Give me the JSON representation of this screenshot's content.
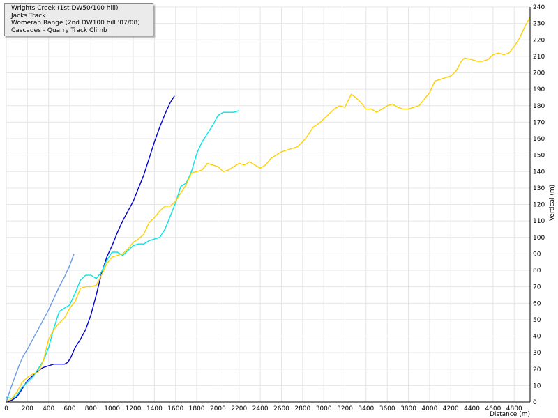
{
  "chart_data": {
    "type": "line",
    "title": "",
    "xlabel": "Distance (m)",
    "ylabel": "Vertical (m)",
    "xlim": [
      0,
      4950
    ],
    "ylim": [
      0,
      240
    ],
    "x_ticks": [
      0,
      200,
      400,
      600,
      800,
      1000,
      1200,
      1400,
      1600,
      1800,
      2000,
      2200,
      2400,
      2600,
      2800,
      3000,
      3200,
      3400,
      3600,
      3800,
      4000,
      4200,
      4400,
      4600,
      4800
    ],
    "y_ticks": [
      0,
      10,
      20,
      30,
      40,
      50,
      60,
      70,
      80,
      90,
      100,
      110,
      120,
      130,
      140,
      150,
      160,
      170,
      180,
      190,
      200,
      210,
      220,
      230,
      240
    ],
    "grid": true,
    "legend_position": "top-left",
    "series": [
      {
        "name": "Wrights Creek (1st DW50/100 hill)",
        "color": "#0000cc",
        "points": [
          [
            0,
            0
          ],
          [
            50,
            1
          ],
          [
            100,
            3
          ],
          [
            150,
            8
          ],
          [
            200,
            13
          ],
          [
            250,
            16
          ],
          [
            300,
            19
          ],
          [
            350,
            21
          ],
          [
            400,
            22
          ],
          [
            450,
            23
          ],
          [
            500,
            23
          ],
          [
            550,
            23
          ],
          [
            580,
            24
          ],
          [
            610,
            27
          ],
          [
            650,
            33
          ],
          [
            700,
            38
          ],
          [
            750,
            44
          ],
          [
            800,
            53
          ],
          [
            850,
            65
          ],
          [
            900,
            78
          ],
          [
            950,
            88
          ],
          [
            1000,
            95
          ],
          [
            1050,
            103
          ],
          [
            1100,
            110
          ],
          [
            1150,
            116
          ],
          [
            1200,
            122
          ],
          [
            1250,
            130
          ],
          [
            1300,
            138
          ],
          [
            1350,
            148
          ],
          [
            1400,
            158
          ],
          [
            1450,
            167
          ],
          [
            1500,
            175
          ],
          [
            1550,
            182
          ],
          [
            1590,
            186
          ]
        ]
      },
      {
        "name": "Jacks Track",
        "color": "#00e5e5",
        "points": [
          [
            0,
            3
          ],
          [
            50,
            2
          ],
          [
            100,
            4
          ],
          [
            150,
            9
          ],
          [
            200,
            12
          ],
          [
            250,
            15
          ],
          [
            300,
            20
          ],
          [
            350,
            25
          ],
          [
            400,
            33
          ],
          [
            450,
            45
          ],
          [
            500,
            55
          ],
          [
            550,
            57
          ],
          [
            600,
            59
          ],
          [
            650,
            66
          ],
          [
            700,
            74
          ],
          [
            750,
            77
          ],
          [
            800,
            77
          ],
          [
            850,
            75
          ],
          [
            900,
            79
          ],
          [
            950,
            86
          ],
          [
            1000,
            91
          ],
          [
            1050,
            91
          ],
          [
            1100,
            89
          ],
          [
            1150,
            92
          ],
          [
            1200,
            95
          ],
          [
            1250,
            96
          ],
          [
            1300,
            96
          ],
          [
            1350,
            98
          ],
          [
            1400,
            99
          ],
          [
            1450,
            100
          ],
          [
            1500,
            105
          ],
          [
            1550,
            113
          ],
          [
            1600,
            121
          ],
          [
            1650,
            131
          ],
          [
            1700,
            133
          ],
          [
            1750,
            140
          ],
          [
            1800,
            151
          ],
          [
            1850,
            158
          ],
          [
            1900,
            163
          ],
          [
            1950,
            168
          ],
          [
            2000,
            174
          ],
          [
            2050,
            176
          ],
          [
            2100,
            176
          ],
          [
            2150,
            176
          ],
          [
            2200,
            177
          ]
        ]
      },
      {
        "name": "Womerah Range (2nd DW100 hill '07/08)",
        "color": "#ffd000",
        "points": [
          [
            0,
            0
          ],
          [
            50,
            2
          ],
          [
            100,
            6
          ],
          [
            150,
            12
          ],
          [
            200,
            15
          ],
          [
            250,
            17
          ],
          [
            300,
            18
          ],
          [
            350,
            25
          ],
          [
            400,
            38
          ],
          [
            450,
            44
          ],
          [
            500,
            48
          ],
          [
            550,
            51
          ],
          [
            600,
            57
          ],
          [
            650,
            61
          ],
          [
            700,
            69
          ],
          [
            750,
            70
          ],
          [
            800,
            70
          ],
          [
            850,
            71
          ],
          [
            900,
            77
          ],
          [
            950,
            84
          ],
          [
            1000,
            88
          ],
          [
            1050,
            89
          ],
          [
            1100,
            90
          ],
          [
            1150,
            93
          ],
          [
            1200,
            97
          ],
          [
            1250,
            99
          ],
          [
            1300,
            102
          ],
          [
            1350,
            109
          ],
          [
            1400,
            112
          ],
          [
            1450,
            116
          ],
          [
            1500,
            119
          ],
          [
            1550,
            119
          ],
          [
            1600,
            122
          ],
          [
            1650,
            127
          ],
          [
            1700,
            132
          ],
          [
            1750,
            139
          ],
          [
            1800,
            140
          ],
          [
            1850,
            141
          ],
          [
            1900,
            145
          ],
          [
            1950,
            144
          ],
          [
            2000,
            143
          ],
          [
            2050,
            140
          ],
          [
            2100,
            141
          ],
          [
            2150,
            143
          ],
          [
            2200,
            145
          ],
          [
            2250,
            144
          ],
          [
            2300,
            146
          ],
          [
            2350,
            144
          ],
          [
            2400,
            142
          ],
          [
            2450,
            144
          ],
          [
            2500,
            148
          ],
          [
            2550,
            150
          ],
          [
            2600,
            152
          ],
          [
            2650,
            153
          ],
          [
            2700,
            154
          ],
          [
            2750,
            155
          ],
          [
            2800,
            158
          ],
          [
            2850,
            162
          ],
          [
            2900,
            167
          ],
          [
            2950,
            169
          ],
          [
            3000,
            172
          ],
          [
            3050,
            175
          ],
          [
            3100,
            178
          ],
          [
            3150,
            180
          ],
          [
            3200,
            179
          ],
          [
            3230,
            183
          ],
          [
            3260,
            187
          ],
          [
            3300,
            185
          ],
          [
            3350,
            182
          ],
          [
            3400,
            178
          ],
          [
            3450,
            178
          ],
          [
            3500,
            176
          ],
          [
            3550,
            178
          ],
          [
            3600,
            180
          ],
          [
            3650,
            181
          ],
          [
            3700,
            179
          ],
          [
            3750,
            178
          ],
          [
            3800,
            178
          ],
          [
            3850,
            179
          ],
          [
            3900,
            180
          ],
          [
            3950,
            184
          ],
          [
            4000,
            188
          ],
          [
            4050,
            195
          ],
          [
            4100,
            196
          ],
          [
            4150,
            197
          ],
          [
            4200,
            198
          ],
          [
            4250,
            201
          ],
          [
            4300,
            207
          ],
          [
            4330,
            209
          ],
          [
            4400,
            208
          ],
          [
            4450,
            207
          ],
          [
            4500,
            207
          ],
          [
            4550,
            208
          ],
          [
            4600,
            211
          ],
          [
            4650,
            212
          ],
          [
            4700,
            211
          ],
          [
            4750,
            212
          ],
          [
            4800,
            216
          ],
          [
            4850,
            221
          ],
          [
            4900,
            228
          ],
          [
            4950,
            234
          ]
        ]
      },
      {
        "name": "Cascades - Quarry Track Climb",
        "color": "#6a9ae8",
        "points": [
          [
            0,
            0
          ],
          [
            40,
            8
          ],
          [
            80,
            15
          ],
          [
            120,
            22
          ],
          [
            160,
            28
          ],
          [
            200,
            32
          ],
          [
            250,
            38
          ],
          [
            300,
            44
          ],
          [
            350,
            50
          ],
          [
            400,
            56
          ],
          [
            450,
            63
          ],
          [
            500,
            70
          ],
          [
            550,
            76
          ],
          [
            600,
            83
          ],
          [
            640,
            90
          ]
        ]
      }
    ]
  }
}
